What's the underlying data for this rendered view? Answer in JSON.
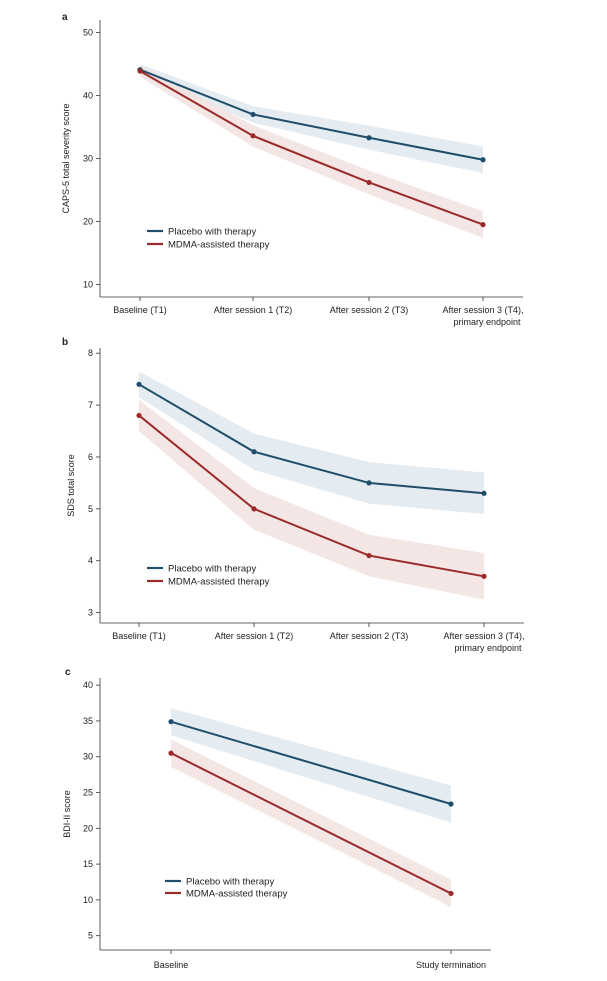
{
  "colors": {
    "placebo": "#1f4e6b",
    "mdma": "#9b2a2a",
    "placebo_band": "#dfe8ef",
    "mdma_band": "#f1e2df",
    "axis": "#333333"
  },
  "chart_data": [
    {
      "type": "line",
      "panel_label": "a",
      "title": "",
      "xlabel": "",
      "ylabel": "CAPS-5 total severity score",
      "categories": [
        "Baseline (T1)",
        "After session 1 (T2)",
        "After session 2 (T3)",
        "After session 3 (T4),"
      ],
      "categories_line2": [
        "",
        "",
        "",
        "primary endpoint"
      ],
      "ylim": [
        8,
        52
      ],
      "yticks": [
        10,
        20,
        30,
        40,
        50
      ],
      "grid": false,
      "legend_position": "lower-left",
      "series": [
        {
          "name": "Placebo with therapy",
          "color_key": "placebo",
          "values": [
            44.1,
            37.0,
            33.3,
            29.8
          ],
          "lower": [
            43.2,
            35.7,
            31.4,
            27.7
          ],
          "upper": [
            45.0,
            38.3,
            35.2,
            31.9
          ]
        },
        {
          "name": "MDMA-assisted therapy",
          "color_key": "mdma",
          "values": [
            43.9,
            33.6,
            26.2,
            19.5
          ],
          "lower": [
            43.0,
            31.9,
            24.3,
            17.4
          ],
          "upper": [
            44.8,
            35.3,
            28.1,
            21.6
          ]
        }
      ]
    },
    {
      "type": "line",
      "panel_label": "b",
      "title": "",
      "xlabel": "",
      "ylabel": "SDS total score",
      "categories": [
        "Baseline (T1)",
        "After session 1 (T2)",
        "After session 2 (T3)",
        "After session 3 (T4),"
      ],
      "categories_line2": [
        "",
        "",
        "",
        "primary endpoint"
      ],
      "ylim": [
        2.8,
        8.1
      ],
      "yticks": [
        3,
        4,
        5,
        6,
        7,
        8
      ],
      "grid": false,
      "legend_position": "lower-left",
      "series": [
        {
          "name": "Placebo with therapy",
          "color_key": "placebo",
          "values": [
            7.4,
            6.1,
            5.5,
            5.3
          ],
          "lower": [
            7.15,
            5.75,
            5.1,
            4.9
          ],
          "upper": [
            7.65,
            6.45,
            5.9,
            5.7
          ]
        },
        {
          "name": "MDMA-assisted therapy",
          "color_key": "mdma",
          "values": [
            6.8,
            5.0,
            4.1,
            3.7
          ],
          "lower": [
            6.5,
            4.6,
            3.7,
            3.25
          ],
          "upper": [
            7.1,
            5.4,
            4.5,
            4.15
          ]
        }
      ]
    },
    {
      "type": "line",
      "panel_label": "c",
      "title": "",
      "xlabel": "",
      "ylabel": "BDI-II score",
      "categories": [
        "Baseline",
        "Study termination"
      ],
      "categories_line2": [
        "",
        ""
      ],
      "ylim": [
        3,
        41
      ],
      "yticks": [
        5,
        10,
        15,
        20,
        25,
        30,
        35,
        40
      ],
      "grid": false,
      "legend_position": "lower-left",
      "series": [
        {
          "name": "Placebo with therapy",
          "color_key": "placebo",
          "values": [
            34.9,
            23.4
          ],
          "lower": [
            33.0,
            20.8
          ],
          "upper": [
            36.8,
            26.0
          ]
        },
        {
          "name": "MDMA-assisted therapy",
          "color_key": "mdma",
          "values": [
            30.5,
            10.9
          ],
          "lower": [
            28.6,
            9.0
          ],
          "upper": [
            32.4,
            12.8
          ]
        }
      ]
    }
  ]
}
